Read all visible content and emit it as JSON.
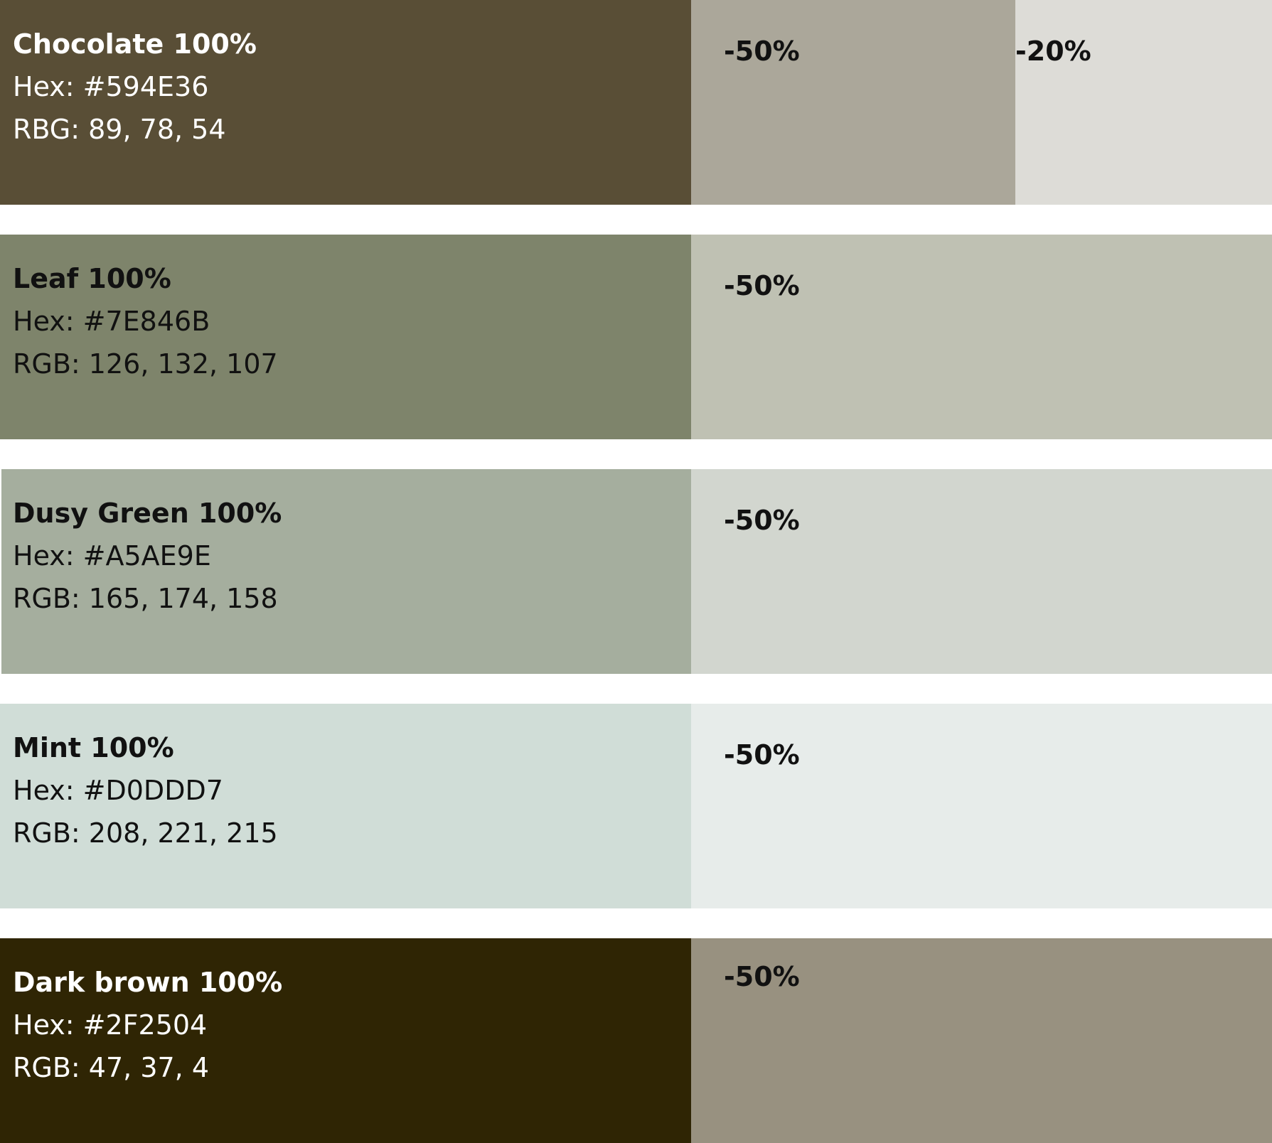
{
  "palette": [
    {
      "name": "Chocolate 100%",
      "hex_text": "Hex: #594E36",
      "rgb_text": "RBG: 89, 78, 54",
      "color": "#594E36",
      "text_color": "#FFFFFF",
      "tints": [
        {
          "label": "-50%",
          "color": "#ABA79A"
        },
        {
          "label": "-20%",
          "color": "#DDDCD7"
        }
      ]
    },
    {
      "name": "Leaf 100%",
      "hex_text": "Hex: #7E846B",
      "rgb_text": "RGB: 126, 132, 107",
      "color": "#7E846B",
      "text_color": "#111111",
      "tints": [
        {
          "label": "-50%",
          "color": "#BFC1B3"
        }
      ]
    },
    {
      "name": "Dusy Green 100%",
      "hex_text": "Hex: #A5AE9E",
      "rgb_text": "RGB: 165, 174, 158",
      "color": "#A5AE9E",
      "text_color": "#111111",
      "tints": [
        {
          "label": "-50%",
          "color": "#D2D6CF"
        }
      ]
    },
    {
      "name": "Mint 100%",
      "hex_text": "Hex: #D0DDD7",
      "rgb_text": "RGB: 208, 221, 215",
      "color": "#D0DDD7",
      "text_color": "#111111",
      "tints": [
        {
          "label": "-50%",
          "color": "#E7ECEA"
        }
      ]
    },
    {
      "name": "Dark brown 100%",
      "hex_text": "Hex: #2F2504",
      "rgb_text": "RGB: 47, 37, 4",
      "color": "#2F2504",
      "text_color": "#FFFFFF",
      "tints": [
        {
          "label": "-50%",
          "color": "#989180"
        }
      ]
    }
  ]
}
